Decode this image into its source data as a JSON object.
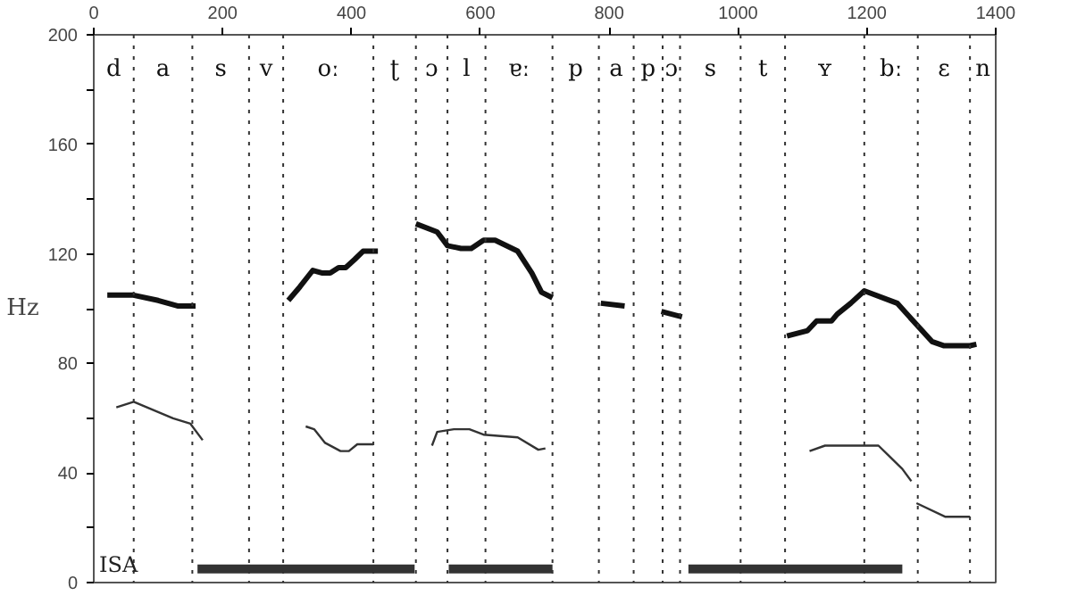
{
  "chart_data": {
    "type": "line",
    "xlim": [
      0,
      1400
    ],
    "xticks": [
      0,
      200,
      400,
      600,
      800,
      1000,
      1200,
      1400
    ],
    "ylim": [
      0,
      200
    ],
    "yticks": [
      0,
      {
        "value": 20,
        "label": null
      },
      40,
      {
        "value": 60,
        "label": null
      },
      80,
      {
        "value": 100,
        "label": null
      },
      120,
      {
        "value": 140,
        "label": null
      },
      160,
      {
        "value": 180,
        "label": null
      },
      200
    ],
    "ylabel": "Hz",
    "grid": false,
    "marker": "none",
    "line_style": "solid",
    "series": [
      {
        "color": "#111111",
        "x": [
          21,
          60,
          100,
          130,
          158,
          null,
          302,
          320,
          340,
          355,
          367,
          380,
          391,
          405,
          418,
          441,
          null,
          500,
          533,
          549,
          570,
          586,
          605,
          623,
          658,
          680,
          695,
          712,
          null,
          787,
          824,
          null,
          881,
          913,
          null,
          1076,
          1108,
          1122,
          1145,
          1154,
          1175,
          1196,
          1247,
          1301,
          1319,
          1360,
          1370
        ],
        "values": [
          105,
          105,
          103,
          101,
          101,
          null,
          103,
          108,
          114,
          113,
          113,
          115,
          115,
          118,
          121,
          121,
          null,
          131,
          128,
          123,
          122,
          122,
          125,
          125,
          121,
          113,
          106,
          104,
          null,
          102,
          101,
          null,
          99,
          97,
          null,
          90,
          92,
          95.5,
          95.5,
          98,
          102,
          106.5,
          102,
          88,
          86.5,
          86.5,
          87
        ]
      },
      {
        "color": "#333333",
        "x": [
          35,
          62,
          123,
          150,
          169,
          null,
          329,
          342,
          359,
          383,
          396,
          409,
          434,
          null,
          525,
          533,
          559,
          583,
          605,
          658,
          690,
          701,
          null,
          1111,
          1135,
          1218,
          1255,
          1269,
          null,
          1277,
          1322,
          1360
        ],
        "values": [
          64,
          66,
          60,
          58,
          52,
          null,
          57,
          56,
          51,
          48,
          48,
          50.5,
          50.5,
          null,
          50,
          55,
          56,
          56,
          54,
          53,
          48.5,
          49,
          null,
          48,
          50,
          50,
          41.5,
          37,
          null,
          29,
          24,
          24
        ]
      },
      {
        "color": "#333333",
        "x": [
          161,
          498,
          null,
          551,
          712,
          null,
          923,
          1255
        ],
        "values": [
          5,
          5,
          null,
          5,
          5,
          null,
          5,
          5
        ]
      }
    ],
    "ref_lines": [
      {
        "axis": "x",
        "value": 62,
        "line_style": "dotted"
      },
      {
        "axis": "x",
        "value": 153,
        "line_style": "dotted"
      },
      {
        "axis": "x",
        "value": 241,
        "line_style": "dotted"
      },
      {
        "axis": "x",
        "value": 294,
        "line_style": "dotted"
      },
      {
        "axis": "x",
        "value": 434,
        "line_style": "dotted"
      },
      {
        "axis": "x",
        "value": 500,
        "line_style": "dotted"
      },
      {
        "axis": "x",
        "value": 549,
        "line_style": "dotted"
      },
      {
        "axis": "x",
        "value": 608,
        "line_style": "dotted"
      },
      {
        "axis": "x",
        "value": 712,
        "line_style": "dotted"
      },
      {
        "axis": "x",
        "value": 784,
        "line_style": "dotted"
      },
      {
        "axis": "x",
        "value": 838,
        "line_style": "dotted"
      },
      {
        "axis": "x",
        "value": 883,
        "line_style": "dotted"
      },
      {
        "axis": "x",
        "value": 910,
        "line_style": "dotted"
      },
      {
        "axis": "x",
        "value": 1004,
        "line_style": "dotted"
      },
      {
        "axis": "x",
        "value": 1073,
        "line_style": "dotted"
      },
      {
        "axis": "x",
        "value": 1196,
        "line_style": "dotted"
      },
      {
        "axis": "x",
        "value": 1279,
        "line_style": "dotted"
      },
      {
        "axis": "x",
        "value": 1360,
        "line_style": "dotted"
      }
    ],
    "annotations": [
      "d",
      "a",
      "s",
      "v",
      "oː",
      "ʈ",
      "ɔ",
      "l",
      "ɐː",
      "p",
      "a",
      "p",
      "ɔ",
      "s",
      "t",
      "ʏ",
      "bː",
      "ɛ",
      "n",
      "ISA"
    ]
  }
}
